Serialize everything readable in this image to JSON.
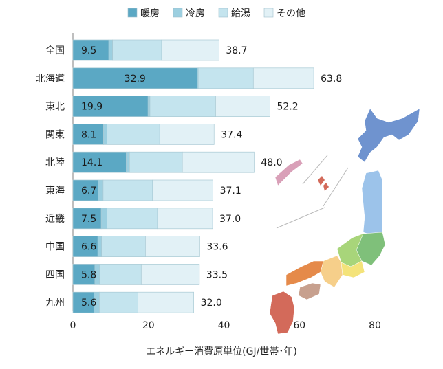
{
  "chart_data": {
    "type": "bar",
    "orientation": "horizontal",
    "stacked": true,
    "categories": [
      "全国",
      "北海道",
      "東北",
      "関東",
      "北陸",
      "東海",
      "近畿",
      "中国",
      "四国",
      "九州"
    ],
    "series": [
      {
        "name": "暖房",
        "values": [
          9.5,
          32.9,
          19.9,
          8.1,
          14.1,
          6.7,
          7.5,
          6.6,
          5.8,
          5.6
        ],
        "color": "#5ba8c4"
      },
      {
        "name": "冷房",
        "values": [
          1.0,
          0.3,
          0.5,
          0.9,
          0.9,
          1.3,
          1.5,
          1.0,
          1.3,
          1.4
        ],
        "color": "#9ccfe0"
      },
      {
        "name": "給湯",
        "values": [
          13.0,
          14.6,
          17.4,
          14.0,
          14.0,
          13.1,
          13.4,
          11.6,
          11.0,
          10.2
        ],
        "color": "#c4e4ee"
      },
      {
        "name": "その他",
        "values": [
          15.2,
          16.0,
          14.4,
          14.4,
          19.0,
          16.0,
          14.6,
          14.4,
          15.4,
          14.8
        ],
        "color": "#e2f1f6"
      }
    ],
    "totals": [
      38.7,
      63.8,
      52.2,
      37.4,
      48.0,
      37.1,
      37.0,
      33.6,
      33.5,
      32.0
    ],
    "xlim": [
      0,
      80
    ],
    "xticks": [
      0,
      20,
      40,
      60,
      80
    ],
    "xlabel": "エネルギー消費原単位(GJ/世帯･年)",
    "ylabel": "",
    "title": "",
    "legend_position": "top",
    "grid": false,
    "inset_image": "japan-regions-map"
  }
}
